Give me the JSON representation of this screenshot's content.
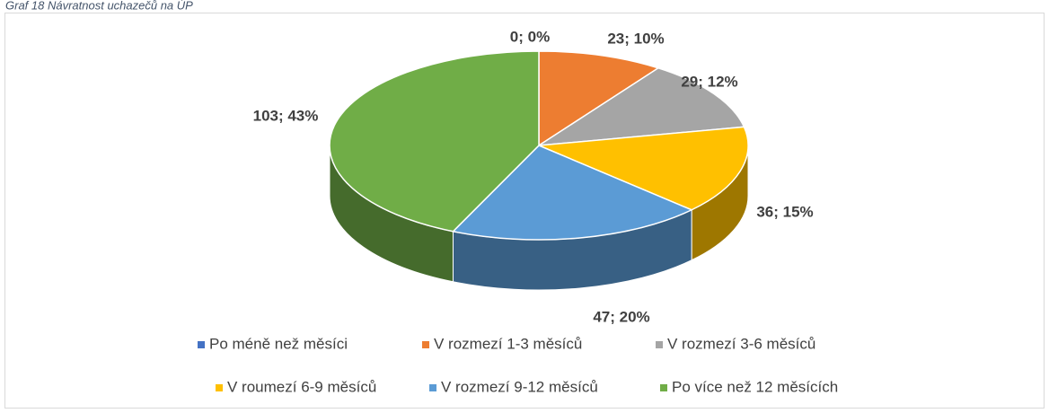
{
  "chart_data": {
    "type": "pie",
    "title": "Graf 18 Návratnost uchazečů na ÚP",
    "categories": [
      "Po méně než měsíci",
      "V rozmezí 1-3 měsíců",
      "V rozmezí 3-6 měsíců",
      "V roumezí 6-9 měsíců",
      "V rozmezí 9-12 měsíců",
      "Po více než 12 měsících"
    ],
    "values": [
      0,
      23,
      29,
      36,
      47,
      103
    ],
    "value_labels": [
      "0; 0%",
      "23; 10%",
      "29; 12%",
      "36; 15%",
      "47; 20%",
      "103; 43%"
    ],
    "colors": [
      "#4472c4",
      "#ed7d31",
      "#a5a5a5",
      "#ffc000",
      "#5b9bd5",
      "#70ad47"
    ],
    "legend": "bottom"
  }
}
